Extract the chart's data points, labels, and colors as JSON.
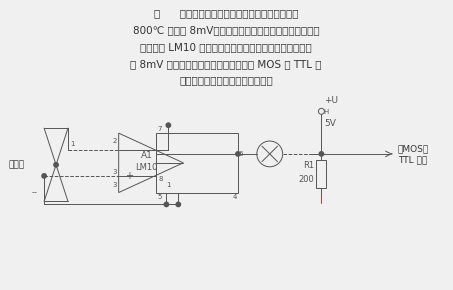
{
  "bg_color": "#f0f0f0",
  "text_color": "#333333",
  "circuit_color": "#555555",
  "line1": "图      电路采用钓钓合金热电偶作温度传感器，在",
  "line2": "800℃ 时输出 8mV，经过将半衡端引脚接至基准输出的运",
  "line3": "算放大器 LM10 输入端上，可使其输出翻转发生在门限输",
  "line4": "入 8mV 点上。再经过传输线可直接驱动 MOS 或 TTL 电",
  "line5": "路和负载，实现报警或其他动作。",
  "label_tc": "热电偶",
  "label_a1": "A1",
  "label_lm10": "LM10",
  "label_ub": "+U",
  "label_ub_sub": "H",
  "label_5v": "5V",
  "label_r1": "R1",
  "label_200": "200",
  "label_to_mos": "至MOS或",
  "label_ttl": "TTL 电路",
  "p1": "1",
  "p2": "2",
  "p3": "3",
  "p4": "4",
  "p5": "5",
  "p6": "6",
  "p7": "7",
  "p8": "8",
  "minus": "-",
  "plus": "+"
}
